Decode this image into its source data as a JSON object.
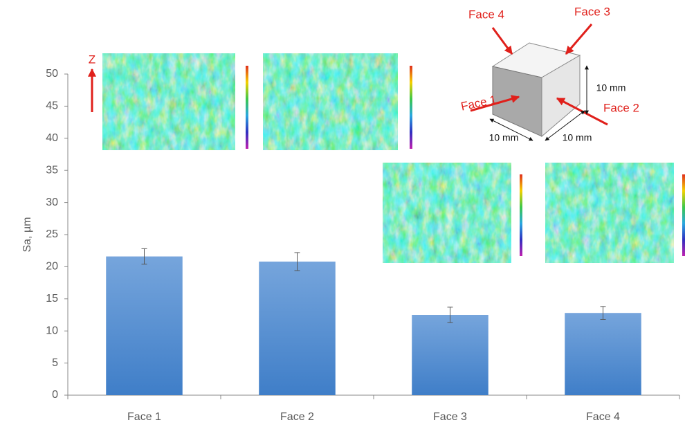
{
  "chart_data": {
    "type": "bar",
    "y_label": "Sa, µm",
    "categories": [
      "Face 1",
      "Face 2",
      "Face 3",
      "Face 4"
    ],
    "values": [
      21.6,
      20.8,
      12.5,
      12.8
    ],
    "errors": [
      1.2,
      1.4,
      1.2,
      1.0
    ],
    "color": "#5b93d3",
    "ylim": [
      0,
      50
    ],
    "yticks": [
      0,
      5,
      10,
      15,
      20,
      25,
      30,
      35,
      40,
      45,
      50
    ],
    "grid": false,
    "annotations": {
      "z_axis": "Z",
      "faces": [
        "Face 4",
        "Face 3",
        "Face 1",
        "Face 2"
      ],
      "dimensions": [
        "10 mm",
        "10 mm",
        "10 mm"
      ]
    }
  }
}
